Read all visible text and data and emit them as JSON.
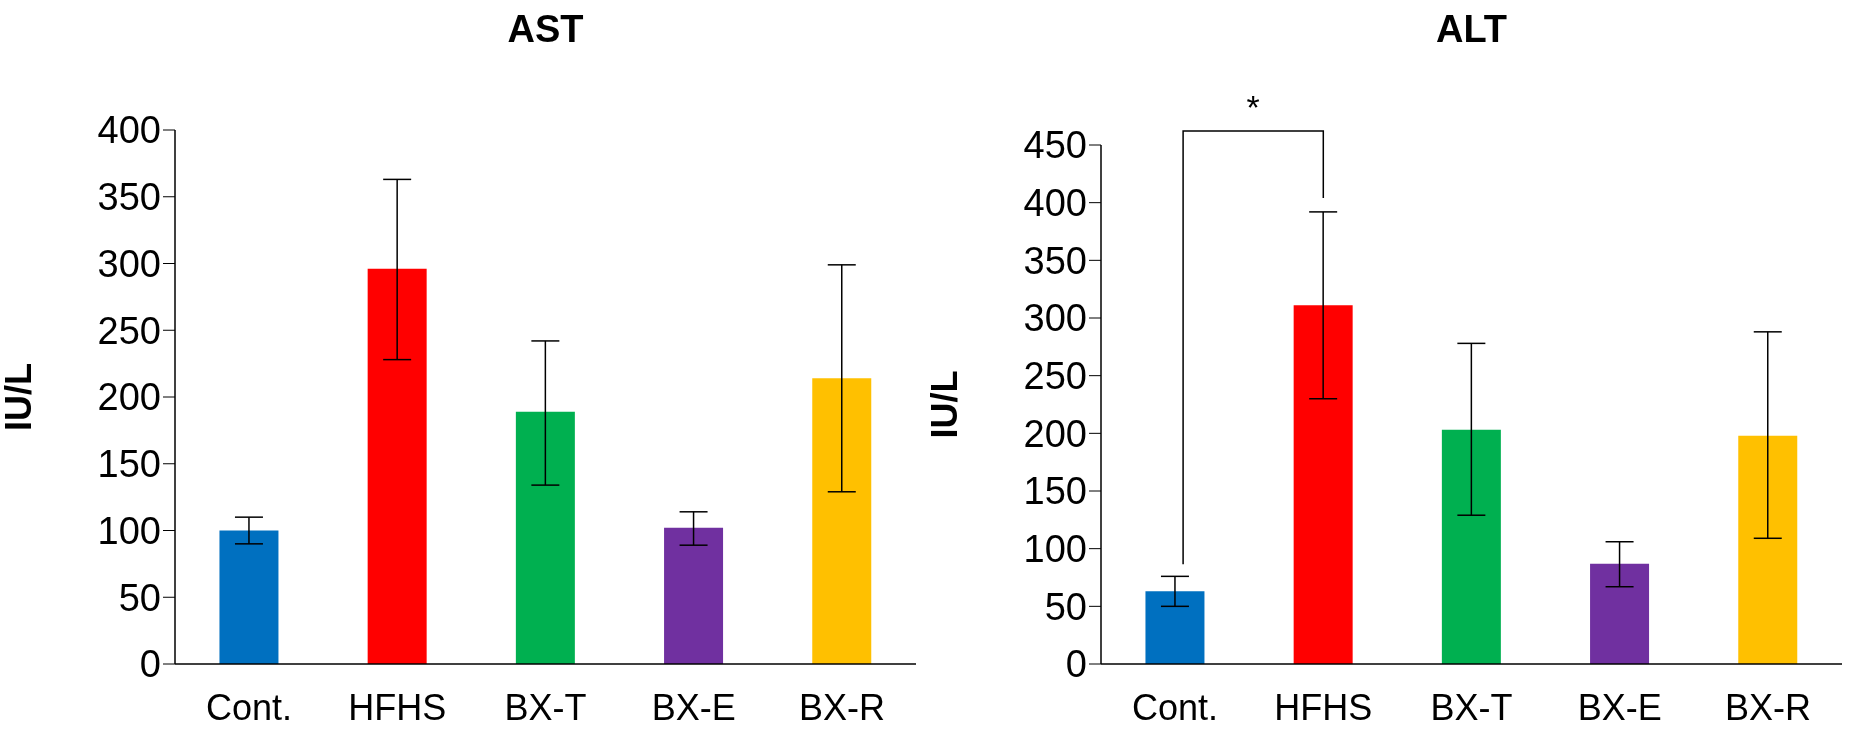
{
  "chart_data": [
    {
      "type": "bar",
      "title": "AST",
      "ylabel": "IU/L",
      "categories": [
        "Cont.",
        "HFHS",
        "BX-T",
        "BX-E",
        "BX-R"
      ],
      "values": [
        100,
        296,
        189,
        102,
        214
      ],
      "colors": [
        "#0070c0",
        "#ff0000",
        "#00b050",
        "#7030a0",
        "#ffc000"
      ],
      "errors": [
        [
          90,
          110
        ],
        [
          228,
          363
        ],
        [
          134,
          242
        ],
        [
          89,
          114
        ],
        [
          129,
          299
        ]
      ],
      "ylim": [
        0,
        400
      ],
      "yticks": [
        0,
        50,
        100,
        150,
        200,
        250,
        300,
        350,
        400
      ]
    },
    {
      "type": "bar",
      "title": "ALT",
      "ylabel": "IU/L",
      "categories": [
        "Cont.",
        "HFHS",
        "BX-T",
        "BX-E",
        "BX-R"
      ],
      "values": [
        63,
        311,
        203,
        87,
        198
      ],
      "colors": [
        "#0070c0",
        "#ff0000",
        "#00b050",
        "#7030a0",
        "#ffc000"
      ],
      "errors": [
        [
          50,
          76
        ],
        [
          230,
          392
        ],
        [
          129,
          278
        ],
        [
          67,
          106
        ],
        [
          109,
          288
        ]
      ],
      "ylim": [
        0,
        450
      ],
      "yticks": [
        0,
        50,
        100,
        150,
        200,
        250,
        300,
        350,
        400,
        450
      ],
      "annotations": [
        "*"
      ]
    }
  ]
}
